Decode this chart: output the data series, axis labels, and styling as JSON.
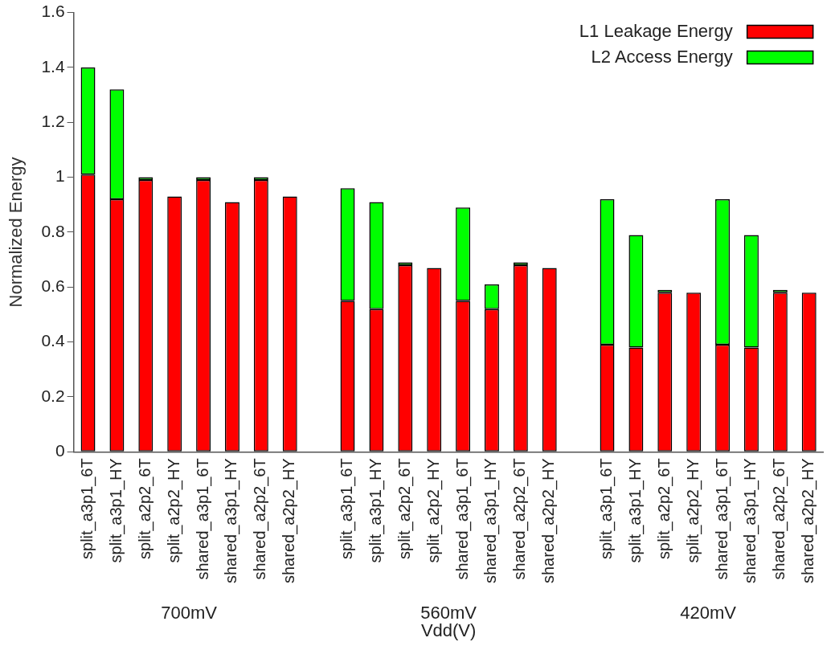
{
  "chart_data": {
    "type": "bar",
    "stacked": true,
    "xlabel": "Vdd(V)",
    "ylabel": "Normalized Energy",
    "categories": [
      "split_a3p1_6T",
      "split_a3p1_HY",
      "split_a2p2_6T",
      "split_a2p2_HY",
      "shared_a3p1_6T",
      "shared_a3p1_HY",
      "shared_a2p2_6T",
      "shared_a2p2_HY",
      null,
      "split_a3p1_6T",
      "split_a3p1_HY",
      "split_a2p2_6T",
      "split_a2p2_HY",
      "shared_a3p1_6T",
      "shared_a3p1_HY",
      "shared_a2p2_6T",
      "shared_a2p2_HY",
      null,
      "split_a3p1_6T",
      "split_a3p1_HY",
      "split_a2p2_6T",
      "split_a2p2_HY",
      "shared_a3p1_6T",
      "shared_a3p1_HY",
      "shared_a2p2_6T",
      "shared_a2p2_HY"
    ],
    "series": [
      {
        "name": "L1 Leakage Energy",
        "color": "#ff0000",
        "values": [
          1.01,
          0.92,
          0.99,
          0.93,
          0.99,
          0.91,
          0.99,
          0.93,
          null,
          0.55,
          0.52,
          0.68,
          0.67,
          0.55,
          0.52,
          0.68,
          0.67,
          null,
          0.39,
          0.38,
          0.58,
          0.58,
          0.39,
          0.38,
          0.58,
          0.58
        ]
      },
      {
        "name": "L2 Access Energy",
        "color": "#00ff00",
        "values": [
          0.39,
          0.4,
          0.01,
          null,
          0.01,
          0,
          0.01,
          null,
          null,
          0.41,
          0.39,
          0.01,
          0,
          0.34,
          0.09,
          0.01,
          0,
          null,
          0.53,
          0.41,
          0.01,
          0,
          0.53,
          0.41,
          0.01,
          0
        ]
      }
    ],
    "ylim": [
      0,
      1.6
    ],
    "yticks": [
      0,
      0.2,
      0.4,
      0.6,
      0.8,
      1,
      1.2,
      1.4,
      1.6
    ],
    "grid": false,
    "legend": "top right",
    "annotations": [
      "700mV",
      "560mV",
      "420mV"
    ]
  }
}
